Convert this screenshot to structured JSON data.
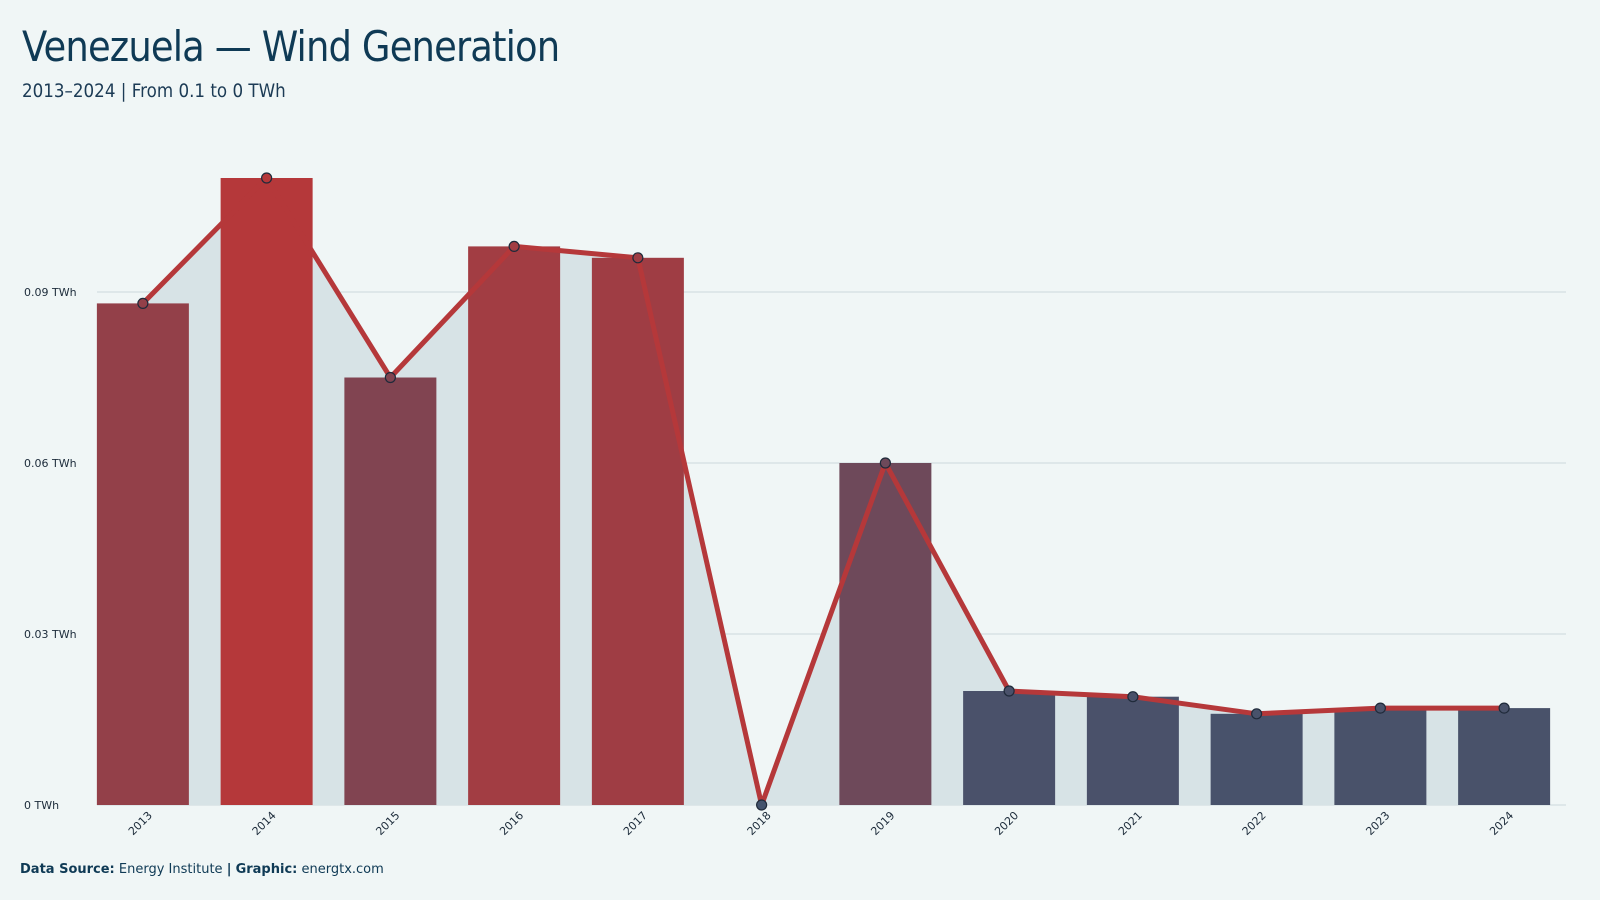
{
  "header": {
    "title": "Venezuela — Wind Generation",
    "subtitle": "2013–2024 | From 0.1 to 0 TWh"
  },
  "footer": {
    "source_label": "Data Source:",
    "source_value": "Energy Institute",
    "separator": "|",
    "graphic_label": "Graphic:",
    "graphic_value": "energtx.com"
  },
  "chart_data": {
    "type": "bar",
    "title": "Venezuela — Wind Generation",
    "subtitle": "2013–2024 | From 0.1 to 0 TWh",
    "xlabel": "",
    "ylabel": "",
    "unit": "TWh",
    "categories": [
      "2013",
      "2014",
      "2015",
      "2016",
      "2017",
      "2018",
      "2019",
      "2020",
      "2021",
      "2022",
      "2023",
      "2024"
    ],
    "values": [
      0.088,
      0.11,
      0.075,
      0.098,
      0.096,
      0.0,
      0.06,
      0.02,
      0.019,
      0.016,
      0.017,
      0.017
    ],
    "y_ticks": [
      0,
      0.03,
      0.06,
      0.09
    ],
    "y_tick_labels": [
      "0 TWh",
      "0.03 TWh",
      "0.06 TWh",
      "0.09 TWh"
    ],
    "ylim": [
      0,
      0.11
    ],
    "overlay": "line with markers and shaded area following the same values",
    "grid": "horizontal",
    "legend": "none",
    "colors": {
      "background": "#f0f6f6",
      "area_fill": "#d7e3e6",
      "line": "#b5383a",
      "high_bar": "#b5383a",
      "low_bar": "#43536d",
      "grid": "#ccd8dc",
      "title": "#0f3a55"
    }
  }
}
